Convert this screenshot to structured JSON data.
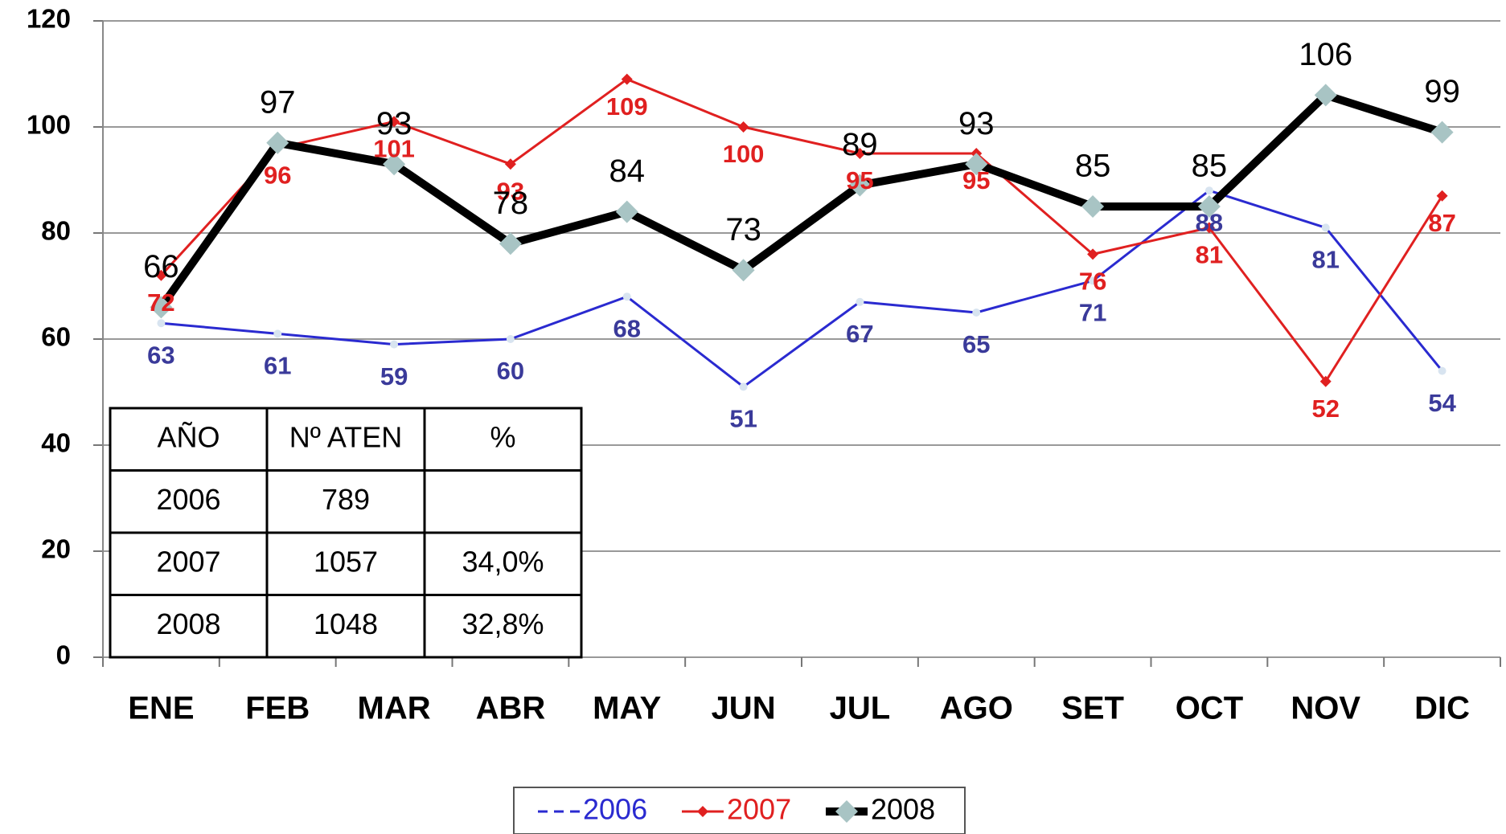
{
  "chart_data": {
    "type": "line",
    "categories": [
      "ENE",
      "FEB",
      "MAR",
      "ABR",
      "MAY",
      "JUN",
      "JUL",
      "AGO",
      "SET",
      "OCT",
      "NOV",
      "DIC"
    ],
    "series": [
      {
        "name": "2006",
        "color": "#2a2ad0",
        "values": [
          63,
          61,
          59,
          60,
          68,
          51,
          67,
          65,
          71,
          88,
          81,
          54
        ]
      },
      {
        "name": "2007",
        "color": "#e02020",
        "values": [
          72,
          96,
          101,
          93,
          109,
          100,
          95,
          95,
          76,
          81,
          52,
          87
        ]
      },
      {
        "name": "2008",
        "color": "#000000",
        "values": [
          66,
          97,
          93,
          78,
          84,
          73,
          89,
          93,
          85,
          85,
          106,
          99
        ]
      }
    ],
    "ylim": [
      0,
      120
    ],
    "yticks": [
      0,
      20,
      40,
      60,
      80,
      100,
      120
    ],
    "grid": true,
    "table": {
      "header": [
        "AÑO",
        "Nº ATEN",
        "%"
      ],
      "rows": [
        [
          "2006",
          "789",
          null
        ],
        [
          "2007",
          "1057",
          "34,0%"
        ],
        [
          "2008",
          "1048",
          "32,8%"
        ]
      ]
    }
  }
}
